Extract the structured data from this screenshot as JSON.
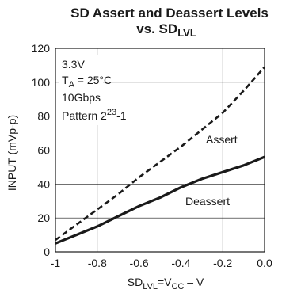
{
  "chart_data": {
    "type": "line",
    "title_line1": "SD Assert and Deassert Levels",
    "title_line2_prefix": "vs. SD",
    "title_line2_sub": "LVL",
    "ylabel": "INPUT (mVp-p)",
    "xlabel_parts": [
      "SD",
      "LVL",
      "=V",
      "CC",
      " – V"
    ],
    "xlim": [
      -1,
      0
    ],
    "ylim": [
      0,
      120
    ],
    "x_ticks": [
      -1,
      -0.8,
      -0.6,
      -0.4,
      -0.2,
      0
    ],
    "x_tick_labels": [
      "-1",
      "-0.8",
      "-0.6",
      "-0.4",
      "-0.2",
      "0.0"
    ],
    "y_ticks": [
      0,
      20,
      40,
      60,
      80,
      100,
      120
    ],
    "y_tick_labels": [
      "0",
      "20",
      "40",
      "60",
      "80",
      "100",
      "120"
    ],
    "grid": true,
    "annotations": {
      "voltage": "3.3V",
      "temp_prefix": "T",
      "temp_sub": "A",
      "temp_value": " = 25°C",
      "rate": "10Gbps",
      "pattern_prefix": "Pattern 2",
      "pattern_sup": "23",
      "pattern_suffix": "-1"
    },
    "series": [
      {
        "name": "Assert",
        "style": "dashed",
        "x": [
          -1.0,
          -0.9,
          -0.8,
          -0.7,
          -0.6,
          -0.5,
          -0.4,
          -0.3,
          -0.2,
          -0.1,
          0.0
        ],
        "y": [
          7,
          16,
          25,
          34,
          44,
          53,
          62,
          72,
          82,
          95,
          109
        ]
      },
      {
        "name": "Deassert",
        "style": "solid",
        "x": [
          -1.0,
          -0.9,
          -0.8,
          -0.7,
          -0.6,
          -0.5,
          -0.4,
          -0.3,
          -0.2,
          -0.1,
          0.0
        ],
        "y": [
          5,
          10,
          15,
          21,
          27,
          32,
          38,
          43,
          47,
          51,
          56
        ]
      }
    ]
  }
}
